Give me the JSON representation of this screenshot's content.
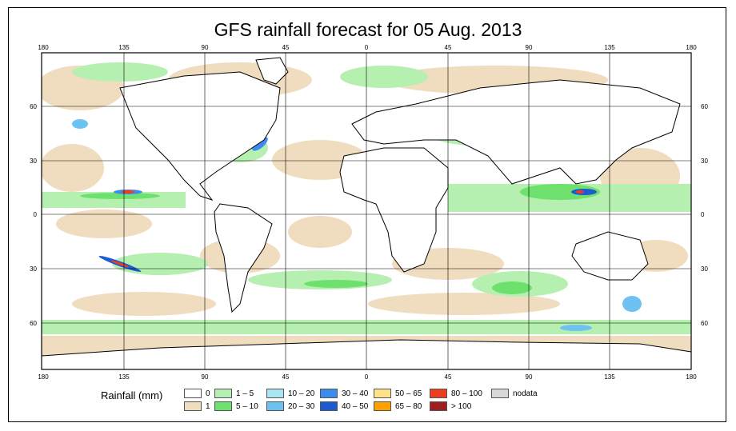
{
  "title": "GFS rainfall forecast for 05 Aug. 2013",
  "lon_labels": [
    "180",
    "135",
    "90",
    "45",
    "0",
    "45",
    "90",
    "135",
    "180"
  ],
  "lat_labels": [
    "60",
    "30",
    "0",
    "30",
    "60"
  ],
  "legend": {
    "title": "Rainfall (mm)",
    "items": [
      {
        "label": "0",
        "color": "#ffffff"
      },
      {
        "label": "1",
        "color": "#f0dcbe"
      },
      {
        "label": "1 – 5",
        "color": "#b6f0b0"
      },
      {
        "label": "5 – 10",
        "color": "#6ee06e"
      },
      {
        "label": "10 – 20",
        "color": "#a8e6f2"
      },
      {
        "label": "20 – 30",
        "color": "#6ec2f2"
      },
      {
        "label": "30 – 40",
        "color": "#3c8cf0"
      },
      {
        "label": "40 – 50",
        "color": "#1e5ad2"
      },
      {
        "label": "50 – 65",
        "color": "#ffe28a"
      },
      {
        "label": "65 – 80",
        "color": "#ffa000"
      },
      {
        "label": "80 – 100",
        "color": "#f03c1e"
      },
      {
        "label": "> 100",
        "color": "#a01e1e"
      },
      {
        "label": "nodata",
        "color": "#d8d8d8"
      }
    ]
  }
}
